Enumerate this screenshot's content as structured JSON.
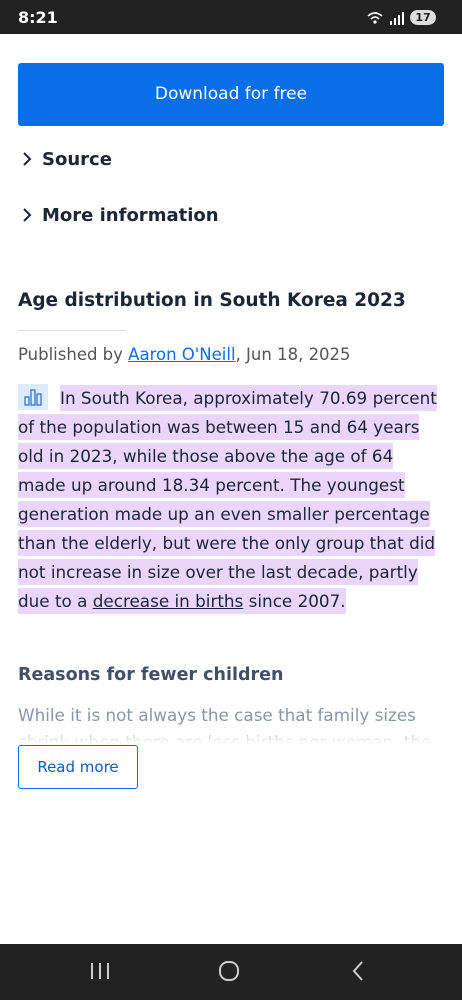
{
  "status_bar": {
    "time": "8:21",
    "battery": "17"
  },
  "download_button": "Download for free",
  "expanders": [
    "Source",
    "More information"
  ],
  "article": {
    "title": "Age distribution in South Korea 2023",
    "published_prefix": "Published by ",
    "author": "Aaron O'Neill",
    "date": ", Jun 18, 2025",
    "paragraph": {
      "before_link": "In South Korea, approximately 70.69 percent of the population was between 15 and 64 years old in 2023, while those above the age of 64 made up around 18.34 percent. The youngest generation made up an even smaller percentage than the elderly, but were the only group that did not increase in size over the last decade, partly due to a ",
      "link": "decrease in births",
      "after_link": " since 2007."
    },
    "subheading": "Reasons for fewer children",
    "teaser": "While it is not always the case that family sizes shrink when there are less births per woman, the",
    "read_more": "Read more"
  }
}
